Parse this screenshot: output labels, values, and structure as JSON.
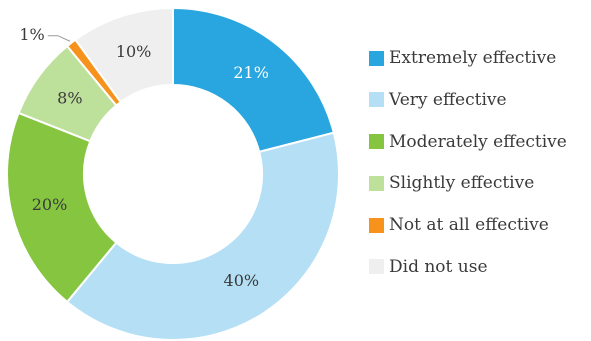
{
  "chart_data": {
    "type": "pie",
    "donut": true,
    "categories": [
      "Extremely effective",
      "Very effective",
      "Moderately effective",
      "Slightly effective",
      "Not at all effective",
      "Did not use"
    ],
    "values": [
      21,
      40,
      20,
      8,
      1,
      10
    ],
    "data_labels": [
      "21%",
      "40%",
      "20%",
      "8%",
      "1%",
      "10%"
    ],
    "unit": "%",
    "colors": [
      "#29a6df",
      "#b4dff4",
      "#86c540",
      "#bde09b",
      "#f7931d",
      "#efefef"
    ],
    "title": "",
    "legend_position": "right",
    "start_angle": "top",
    "direction": "clockwise"
  }
}
